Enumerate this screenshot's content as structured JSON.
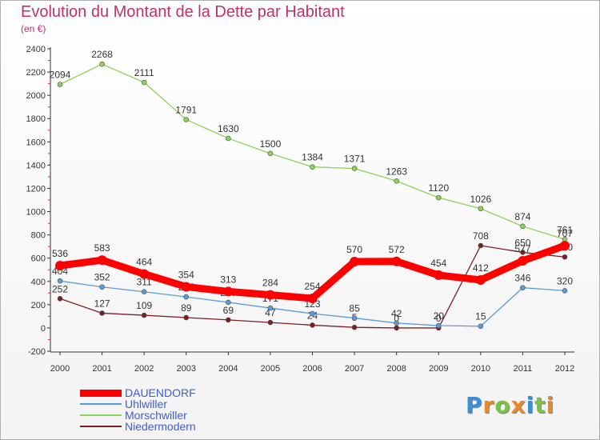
{
  "title": "Evolution du Montant de la Dette par Habitant",
  "subtitle": "(en €)",
  "logo": {
    "text": "Proxiti",
    "letters": [
      {
        "ch": "P",
        "color": "#3a8fd6"
      },
      {
        "ch": "r",
        "color": "#e8892a"
      },
      {
        "ch": "o",
        "color": "#7cc242"
      },
      {
        "ch": "x",
        "color": "#e8892a"
      },
      {
        "ch": "i",
        "color": "#3a8fd6"
      },
      {
        "ch": "t",
        "color": "#7cc242"
      },
      {
        "ch": "i",
        "color": "#e8892a"
      }
    ]
  },
  "chart_data": {
    "type": "line",
    "x": [
      "2000",
      "2001",
      "2002",
      "2003",
      "2004",
      "2005",
      "2006",
      "2007",
      "2008",
      "2009",
      "2010",
      "2011",
      "2012"
    ],
    "ylim": [
      -200,
      2400
    ],
    "yticks": [
      "-200",
      "0",
      "200",
      "400",
      "600",
      "800",
      "1000",
      "1200",
      "1400",
      "1600",
      "1800",
      "2000",
      "2200",
      "2400"
    ],
    "grid": false,
    "legend_position": "bottom-left",
    "series": [
      {
        "name": "Niedermodern",
        "color": "#7a1e24",
        "style": "thin",
        "values": [
          252,
          127,
          109,
          89,
          69,
          47,
          24,
          5,
          0,
          0,
          708,
          650,
          610
        ],
        "labels": [
          "252",
          "127",
          "109",
          "89",
          "69",
          "47",
          "24",
          "5",
          "0",
          "0",
          "708",
          "650",
          "610"
        ]
      },
      {
        "name": "Morschwiller",
        "color": "#8cd158",
        "style": "thin",
        "values": [
          2094,
          2268,
          2111,
          1791,
          1630,
          1500,
          1384,
          1371,
          1263,
          1120,
          1026,
          874,
          761
        ],
        "labels": [
          "2094",
          "2268",
          "2111",
          "1791",
          "1630",
          "1500",
          "1384",
          "1371",
          "1263",
          "1120",
          "1026",
          "874",
          "761"
        ]
      },
      {
        "name": "Uhlwiller",
        "color": "#5b9bd5",
        "style": "thin",
        "values": [
          404,
          352,
          311,
          267,
          220,
          171,
          123,
          85,
          42,
          20,
          15,
          346,
          320
        ],
        "labels": [
          "404",
          "352",
          "311",
          "267",
          "220",
          "171",
          "123",
          "85",
          "42",
          "20",
          "15",
          "346",
          "320"
        ]
      },
      {
        "name": "DAUENDORF",
        "color": "#ff0000",
        "style": "thick",
        "values": [
          536,
          583,
          464,
          354,
          313,
          284,
          254,
          570,
          572,
          454,
          412,
          577,
          707
        ],
        "labels": [
          "536",
          "583",
          "464",
          "354",
          "313",
          "284",
          "254",
          "570",
          "572",
          "454",
          "412",
          "577",
          "707"
        ]
      }
    ],
    "legend": [
      {
        "name": "DAUENDORF",
        "color": "#ff0000",
        "style": "thick"
      },
      {
        "name": "Uhlwiller",
        "color": "#5b9bd5",
        "style": "thin"
      },
      {
        "name": "Morschwiller",
        "color": "#8cd158",
        "style": "thin"
      },
      {
        "name": "Niedermodern",
        "color": "#7a1e24",
        "style": "thin"
      }
    ]
  }
}
